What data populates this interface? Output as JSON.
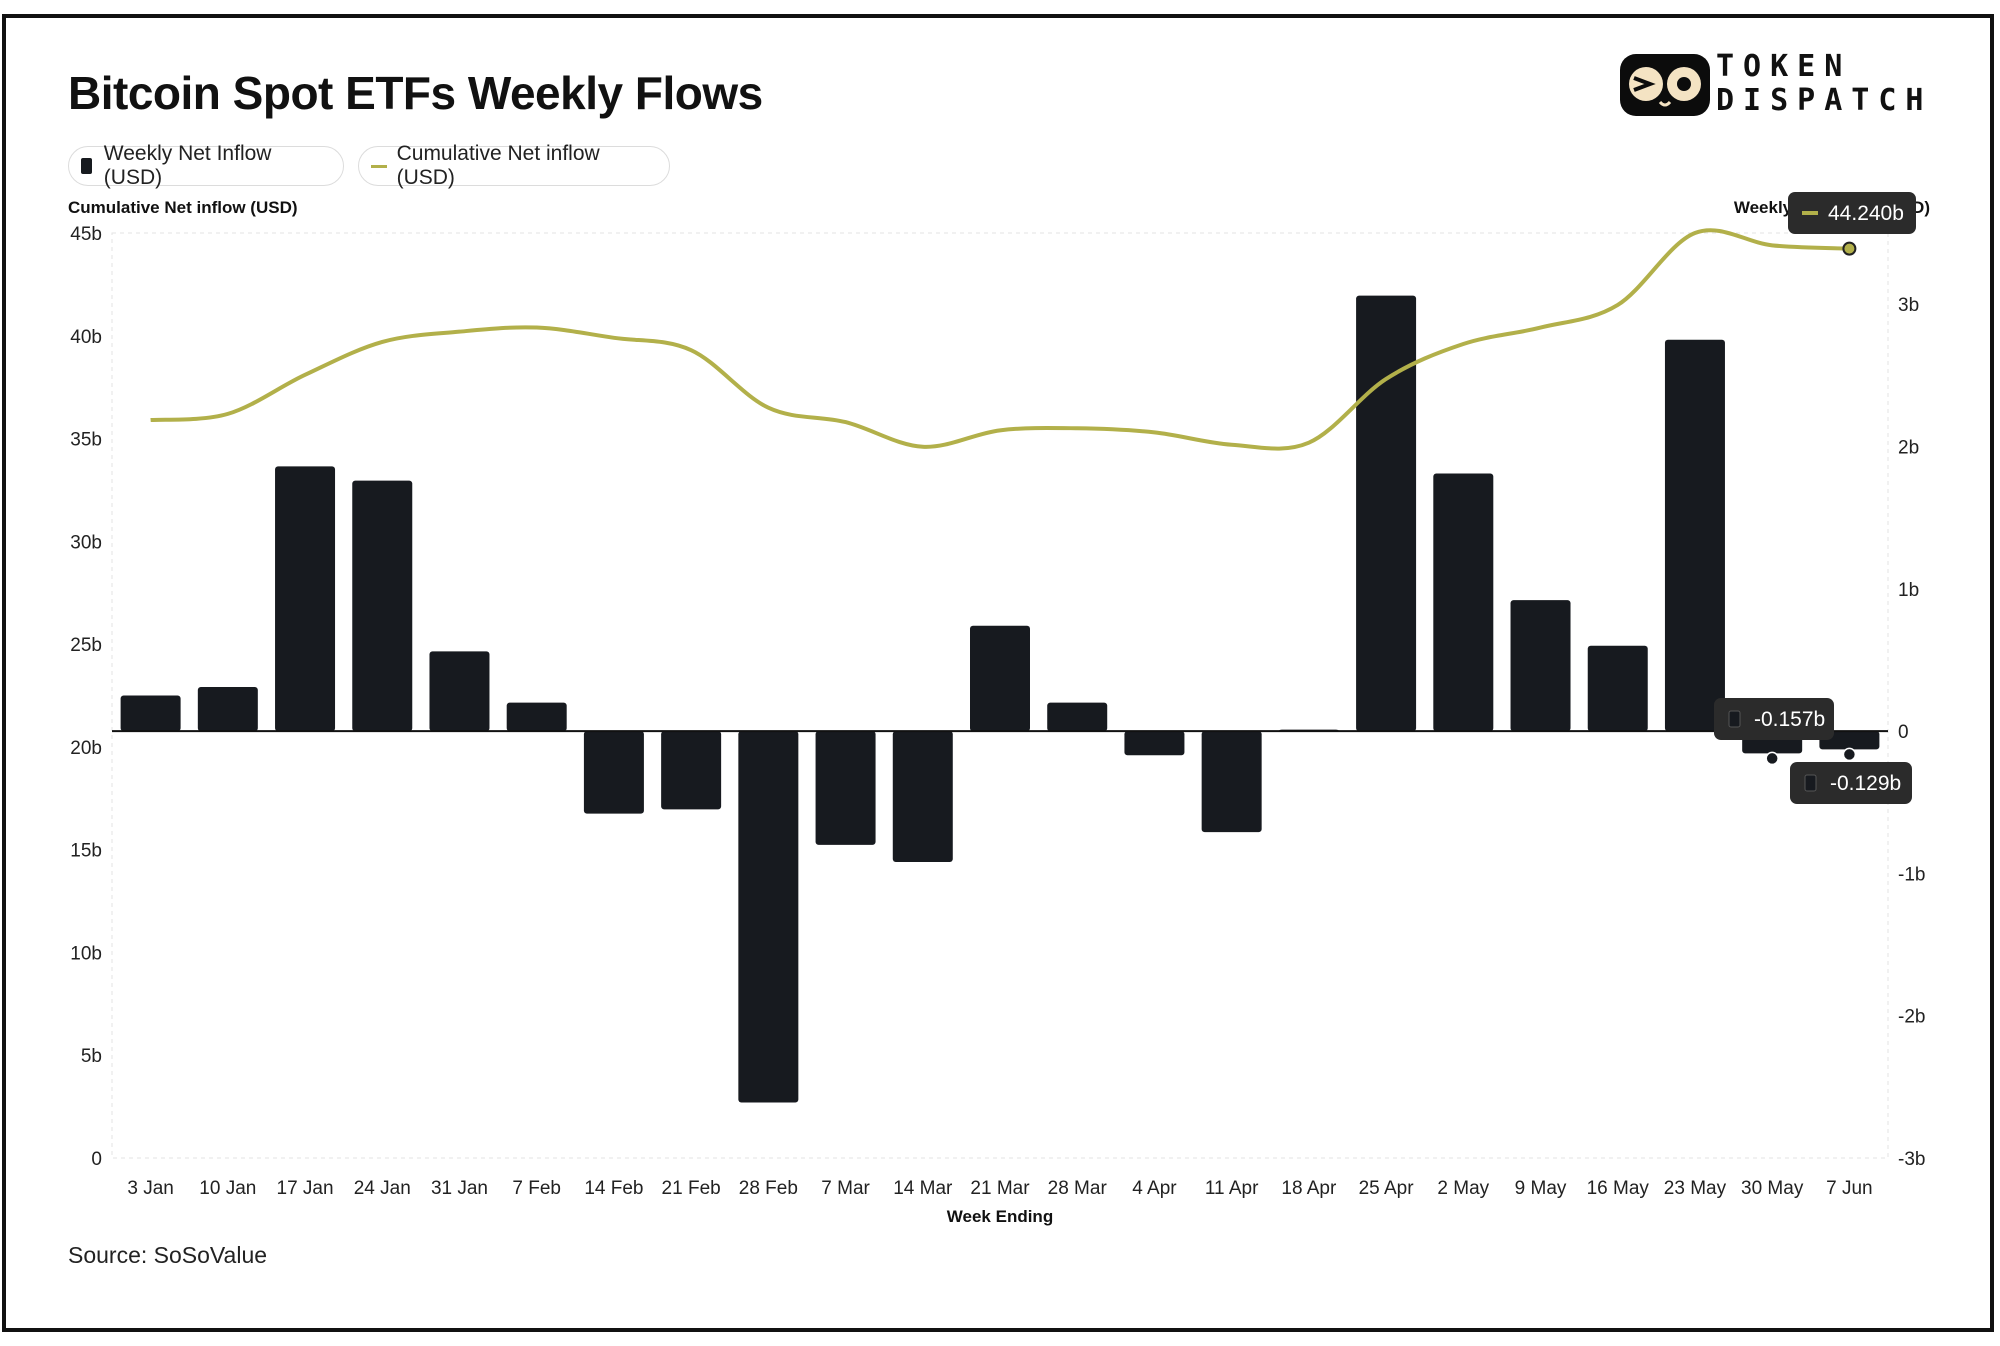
{
  "title": "Bitcoin Spot ETFs Weekly Flows",
  "logo": {
    "line1": "TOKEN",
    "line2": "DISPATCH",
    "icon": "owl-eyes-icon"
  },
  "legend": [
    {
      "label": "Weekly Net Inflow (USD)",
      "color": "#171a1f"
    },
    {
      "label": "Cumulative Net inflow (USD)",
      "color": "#b2b04a"
    }
  ],
  "source": "Source: SoSoValue",
  "tooltips": {
    "cumulative_last": "44.240b",
    "weekly_30may": "-0.157b",
    "weekly_7jun": "-0.129b"
  },
  "chart_data": {
    "type": "bar",
    "title": "Bitcoin Spot ETFs Weekly Flows",
    "xlabel": "Week Ending",
    "ylabel_left": "Cumulative Net inflow (USD)",
    "ylabel_right": "Weekly Net Inflow (USD)",
    "categories": [
      "3 Jan",
      "10 Jan",
      "17 Jan",
      "24 Jan",
      "31 Jan",
      "7 Feb",
      "14 Feb",
      "21 Feb",
      "28 Feb",
      "7 Mar",
      "14 Mar",
      "21 Mar",
      "28 Mar",
      "4 Apr",
      "11 Apr",
      "18 Apr",
      "25 Apr",
      "2 May",
      "9 May",
      "16 May",
      "23 May",
      "30 May",
      "7 Jun"
    ],
    "ylim_left": [
      0,
      45
    ],
    "ylim_right": [
      -3,
      3.5
    ],
    "yticks_left": [
      "0",
      "5b",
      "10b",
      "15b",
      "20b",
      "25b",
      "30b",
      "35b",
      "40b",
      "45b"
    ],
    "yticks_right": [
      "-3b",
      "-2b",
      "-1b",
      "0",
      "1b",
      "2b",
      "3b"
    ],
    "series": [
      {
        "name": "Weekly Net Inflow (USD)",
        "type": "bar",
        "axis": "right",
        "color": "#171a1f",
        "values": [
          0.25,
          0.31,
          1.86,
          1.76,
          0.56,
          0.2,
          -0.58,
          -0.55,
          -2.61,
          -0.8,
          -0.92,
          0.74,
          0.2,
          -0.17,
          -0.71,
          0.01,
          3.06,
          1.81,
          0.92,
          0.6,
          2.75,
          -0.157,
          -0.129
        ]
      },
      {
        "name": "Cumulative Net inflow (USD)",
        "type": "line",
        "axis": "left",
        "color": "#b2b04a",
        "values": [
          35.9,
          36.2,
          38.1,
          39.7,
          40.2,
          40.4,
          39.9,
          39.3,
          36.5,
          35.8,
          34.6,
          35.4,
          35.5,
          35.3,
          34.7,
          34.8,
          37.9,
          39.6,
          40.4,
          41.5,
          45.0,
          44.4,
          44.24
        ]
      }
    ]
  }
}
